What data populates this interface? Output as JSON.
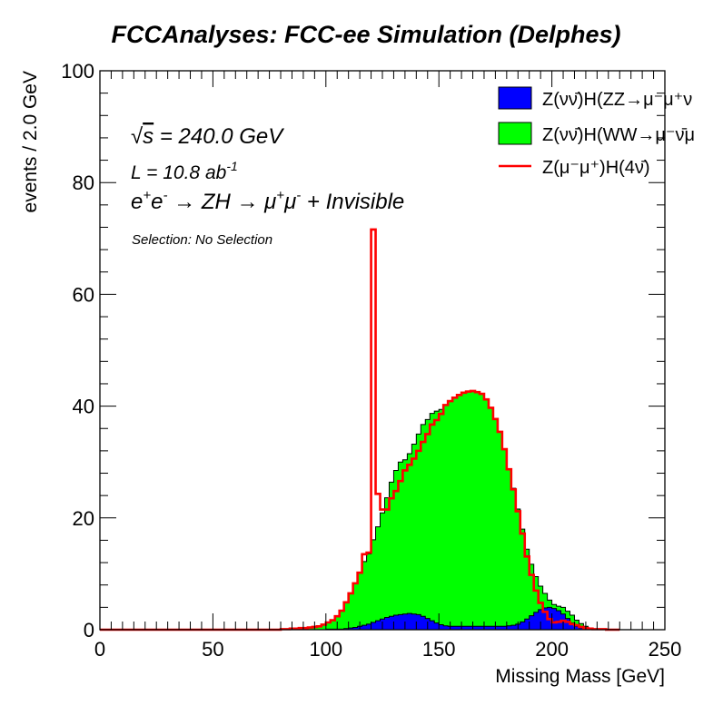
{
  "chart_data": {
    "type": "area",
    "title": "FCCAnalyses: FCC-ee Simulation (Delphes)",
    "xlabel": "Missing Mass [GeV]",
    "ylabel": "events / 2.0 GeV",
    "xlim": [
      0,
      250
    ],
    "ylim": [
      0,
      100
    ],
    "x_ticks": [
      0,
      50,
      100,
      150,
      200,
      250
    ],
    "y_ticks": [
      0,
      20,
      40,
      60,
      80,
      100
    ],
    "x_tick_labels": [
      "0",
      "50",
      "100",
      "150",
      "200",
      "250"
    ],
    "y_tick_labels": [
      "0",
      "20",
      "40",
      "60",
      "80",
      "100"
    ],
    "grid": false,
    "legend_position": "top-right",
    "stacked": true,
    "bin_width": 2.0,
    "bin_start": 0,
    "annotations": {
      "sqrt_s_symbol": "√",
      "sqrt_s_var": "s",
      "sqrt_s_value": " = 240.0 GeV",
      "lumi_text": "L = 10.8 ab",
      "lumi_exp": "-1",
      "process_e": "e",
      "process_plus": "+",
      "process_minus": "-",
      "process_arrow1": " → ZH → μ",
      "process_tail": " + Invisible",
      "selection": "Selection: No Selection"
    },
    "legend": [
      {
        "label": "Z(νν̄)H(ZZ→μ⁻μ⁺ν",
        "color": "#0000ff",
        "style": "fill"
      },
      {
        "label": "Z(νν̄)H(WW→μ⁻ν̄μ",
        "color": "#00ff00",
        "style": "fill"
      },
      {
        "label": "Z(μ⁻μ⁺)H(4ν̄)",
        "color": "#ff0000",
        "style": "line"
      }
    ],
    "series": [
      {
        "name": "Z(νν̄)H(ZZ→μ⁻μ⁺ν",
        "color": "#0000ff",
        "values": [
          0,
          0,
          0,
          0,
          0,
          0,
          0,
          0,
          0,
          0,
          0,
          0,
          0,
          0,
          0,
          0,
          0,
          0,
          0,
          0,
          0,
          0,
          0,
          0,
          0,
          0,
          0,
          0,
          0,
          0,
          0,
          0,
          0,
          0,
          0,
          0,
          0,
          0,
          0,
          0,
          0,
          0,
          0,
          0,
          0,
          0,
          0,
          0,
          0,
          0,
          0.1,
          0.1,
          0.1,
          0.1,
          0.2,
          0.3,
          0.4,
          0.6,
          0.8,
          1.0,
          1.3,
          1.6,
          1.9,
          2.2,
          2.4,
          2.6,
          2.7,
          2.8,
          2.9,
          2.8,
          2.7,
          2.4,
          2.0,
          1.6,
          1.2,
          0.9,
          0.7,
          0.6,
          0.6,
          0.6,
          0.6,
          0.6,
          0.6,
          0.6,
          0.6,
          0.6,
          0.6,
          0.6,
          0.6,
          0.6,
          0.7,
          0.8,
          1.0,
          1.4,
          1.9,
          2.5,
          3.1,
          3.6,
          3.9,
          4.0,
          3.8,
          3.4,
          2.8,
          2.0,
          1.2,
          0.6,
          0.3,
          0.1,
          0.05,
          0,
          0,
          0,
          0,
          0,
          0
        ]
      },
      {
        "name": "Z(νν̄)H(WW→μ⁻ν̄μ",
        "color": "#00ff00",
        "values": [
          0,
          0,
          0,
          0,
          0,
          0,
          0,
          0,
          0,
          0,
          0,
          0,
          0,
          0,
          0,
          0,
          0,
          0,
          0,
          0,
          0,
          0,
          0,
          0,
          0,
          0,
          0,
          0,
          0,
          0,
          0,
          0,
          0,
          0,
          0,
          0,
          0,
          0,
          0,
          0,
          0.1,
          0.1,
          0.2,
          0.2,
          0.3,
          0.3,
          0.4,
          0.5,
          0.6,
          0.9,
          1.2,
          1.6,
          2.3,
          3.2,
          4.6,
          6.2,
          7.9,
          9.6,
          11.4,
          12.6,
          14.8,
          16.8,
          19.0,
          21.4,
          24.0,
          25.9,
          27.3,
          27.6,
          28.6,
          30.4,
          32.3,
          34.3,
          35.6,
          37.1,
          37.9,
          38.5,
          39.5,
          40.3,
          40.9,
          41.3,
          41.8,
          42.0,
          42.1,
          41.9,
          41.6,
          40.6,
          39.1,
          37.1,
          34.8,
          31.7,
          28.1,
          24.5,
          20.6,
          16.6,
          12.5,
          9.2,
          6.4,
          4.2,
          2.6,
          1.3,
          0.7,
          0.8,
          1.2,
          1.3,
          1.4,
          1.1,
          0.8,
          0.5,
          0.2,
          0.1,
          0.1,
          0.1,
          0,
          0,
          0
        ]
      },
      {
        "name": "Z(μ⁻μ⁺)H(4ν̄)",
        "color": "#ff0000",
        "line_values": [
          0,
          0,
          0,
          0,
          0,
          0,
          0,
          0,
          0,
          0,
          0,
          0,
          0,
          0,
          0,
          0,
          0,
          0,
          0,
          0,
          0,
          0,
          0,
          0,
          0,
          0,
          0,
          0,
          0,
          0,
          0,
          0,
          0,
          0,
          0,
          0,
          0,
          0,
          0,
          0,
          0.1,
          0.1,
          0.2,
          0.2,
          0.3,
          0.3,
          0.4,
          0.5,
          0.6,
          0.9,
          1.3,
          1.7,
          2.4,
          3.4,
          4.9,
          6.5,
          8.3,
          10.2,
          13.5,
          13.8,
          71.6,
          24.3,
          21.5,
          21.5,
          23.5,
          24.8,
          26.6,
          28.5,
          29.5,
          30.6,
          32.0,
          33.6,
          35.0,
          36.7,
          37.5,
          38.6,
          40.2,
          40.9,
          41.5,
          42.0,
          42.4,
          42.6,
          42.7,
          42.5,
          42.2,
          41.2,
          39.7,
          37.7,
          35.4,
          32.3,
          28.7,
          25.1,
          21.2,
          17.2,
          13.1,
          9.8,
          7.0,
          4.8,
          3.2,
          1.9,
          1.3,
          1.4,
          1.6,
          1.4,
          1.0,
          0.8,
          0.5,
          0.3,
          0.2,
          0.1,
          0.1,
          0.1,
          0,
          0,
          0
        ]
      }
    ]
  }
}
